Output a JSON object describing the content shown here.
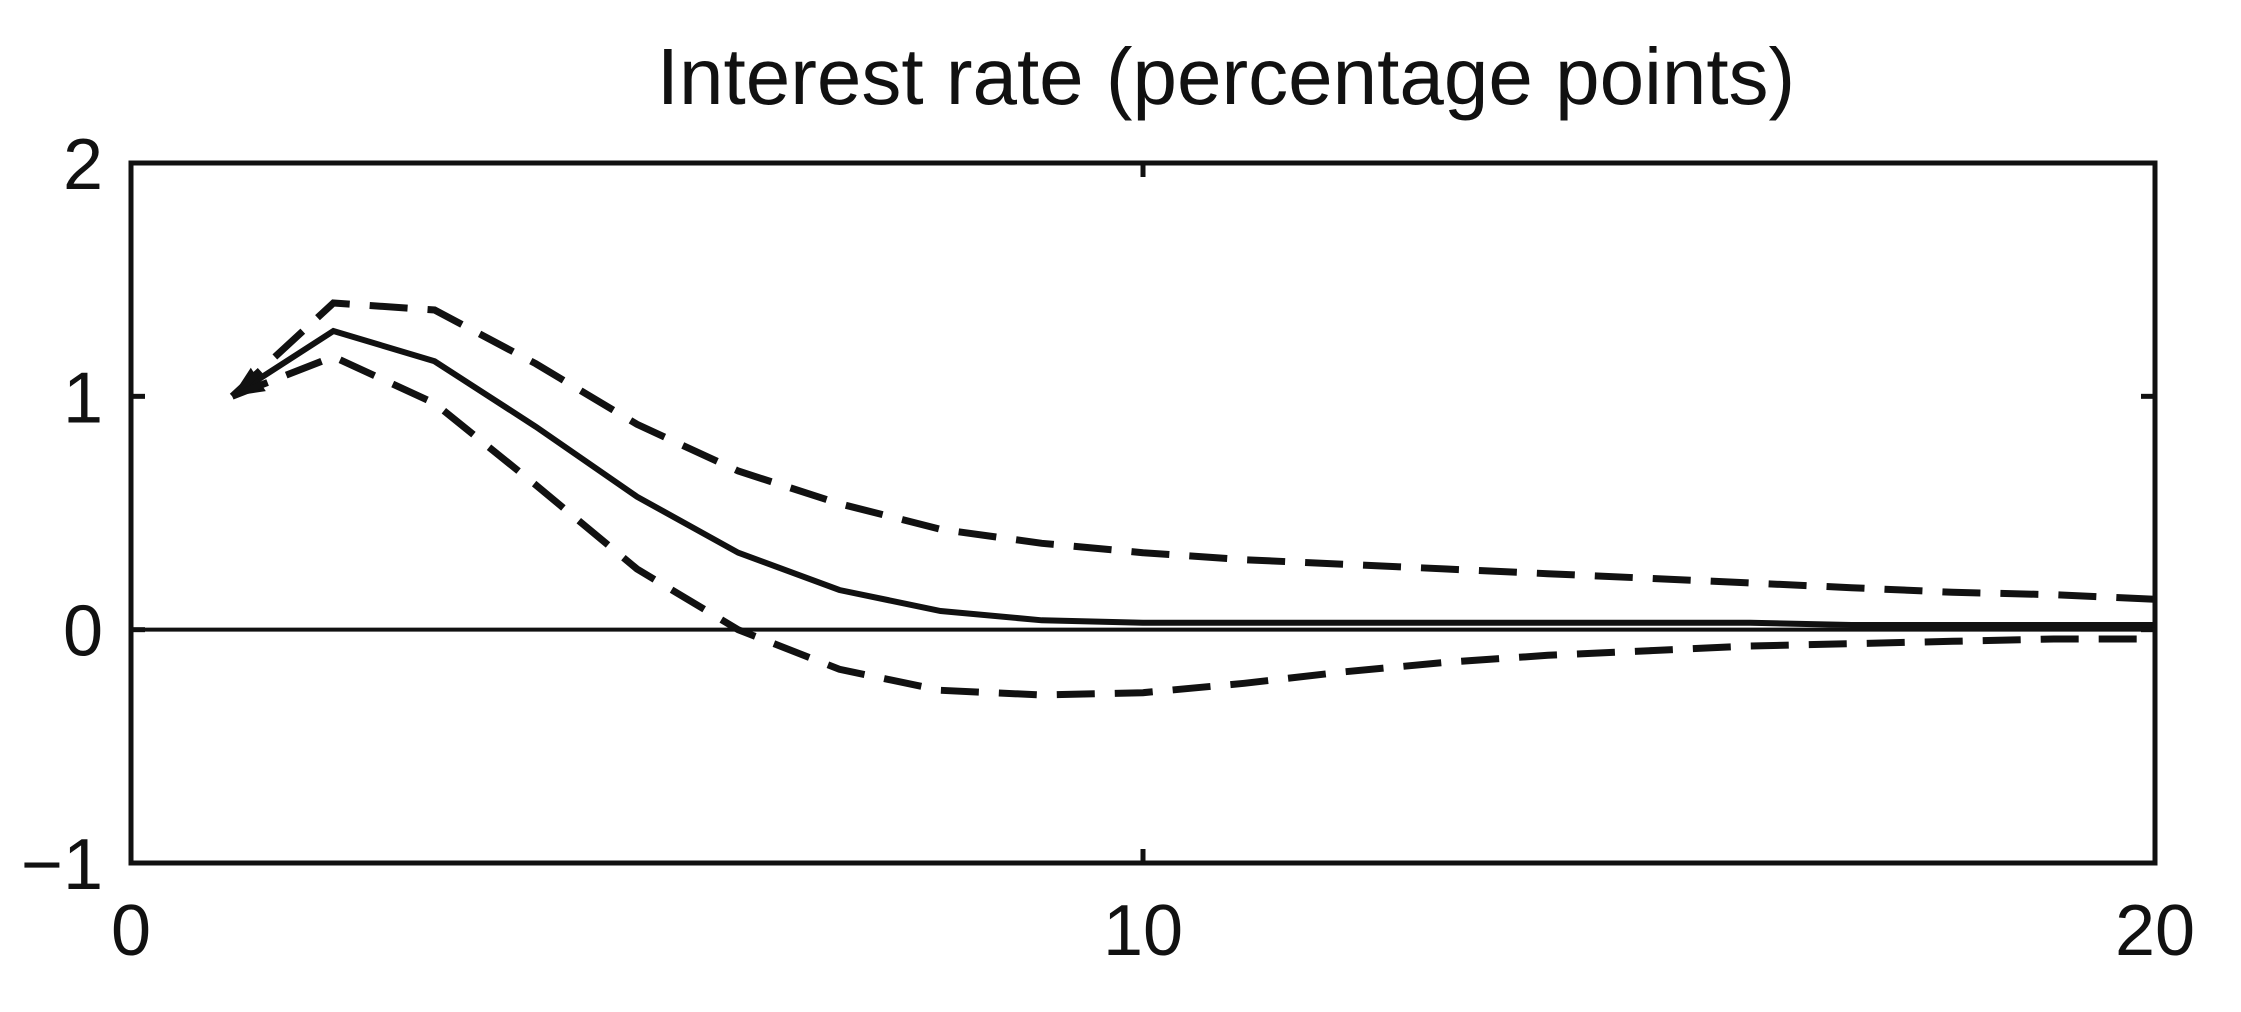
{
  "chart_data": {
    "type": "line",
    "title": "Interest rate (percentage points)",
    "xlabel": "",
    "ylabel": "",
    "xlim": [
      0,
      20
    ],
    "ylim": [
      -1,
      2
    ],
    "x_ticks": [
      0,
      10,
      20
    ],
    "y_ticks": [
      -1,
      0,
      1,
      2
    ],
    "x_tick_labels": [
      "0",
      "10",
      "20"
    ],
    "y_tick_labels": [
      "−1",
      "0",
      "1",
      "2"
    ],
    "grid": false,
    "legend": "none",
    "zero_line": true,
    "series": [
      {
        "style": "solid",
        "x": [
          1,
          2,
          3,
          4,
          5,
          6,
          7,
          8,
          9,
          10,
          11,
          12,
          13,
          14,
          15,
          16,
          17,
          18,
          19,
          20
        ],
        "y": [
          1.0,
          1.28,
          1.15,
          0.87,
          0.57,
          0.33,
          0.17,
          0.08,
          0.04,
          0.03,
          0.03,
          0.03,
          0.03,
          0.03,
          0.03,
          0.03,
          0.02,
          0.02,
          0.02,
          0.02
        ]
      },
      {
        "style": "dashed",
        "x": [
          1,
          2,
          3,
          4,
          5,
          6,
          7,
          8,
          9,
          10,
          11,
          12,
          13,
          14,
          15,
          16,
          17,
          18,
          19,
          20
        ],
        "y": [
          1.0,
          1.4,
          1.37,
          1.14,
          0.88,
          0.68,
          0.54,
          0.43,
          0.37,
          0.33,
          0.3,
          0.28,
          0.26,
          0.24,
          0.22,
          0.2,
          0.18,
          0.16,
          0.15,
          0.13
        ]
      },
      {
        "style": "dashed",
        "x": [
          1,
          2,
          3,
          4,
          5,
          6,
          7,
          8,
          9,
          10,
          11,
          12,
          13,
          14,
          15,
          16,
          17,
          18,
          19,
          20
        ],
        "y": [
          1.0,
          1.17,
          0.97,
          0.62,
          0.26,
          0.0,
          -0.17,
          -0.26,
          -0.28,
          -0.27,
          -0.23,
          -0.18,
          -0.14,
          -0.11,
          -0.09,
          -0.07,
          -0.06,
          -0.05,
          -0.04,
          -0.04
        ]
      }
    ]
  }
}
